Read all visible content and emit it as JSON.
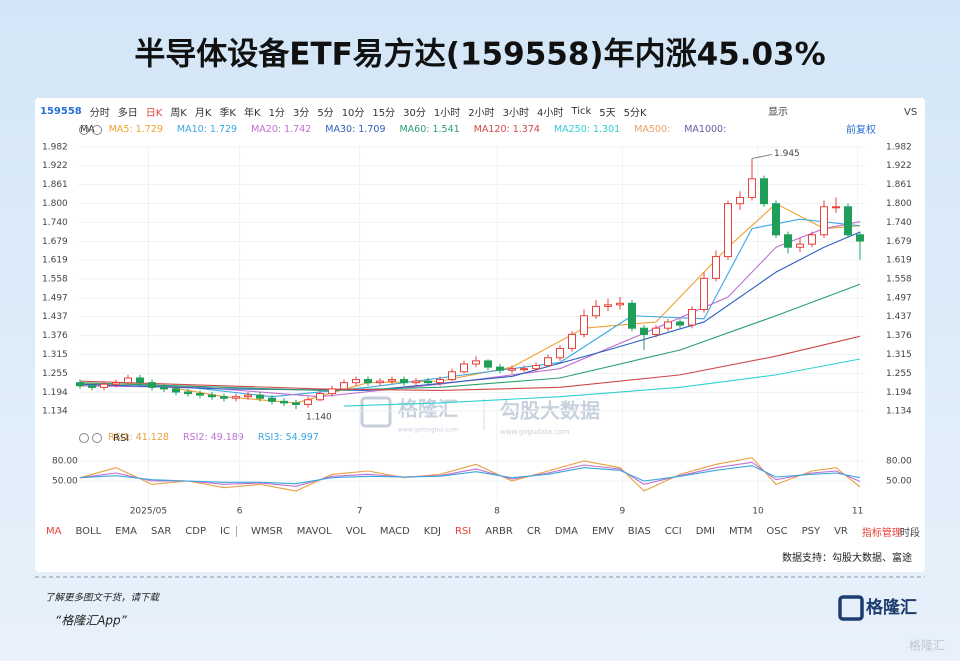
{
  "header": {
    "title": "半导体设备ETF易方达(159558)年内涨45.03%"
  },
  "toolbar": {
    "code": "159558",
    "items": [
      "分时",
      "多日",
      "日K",
      "周K",
      "月K",
      "季K",
      "年K",
      "1分",
      "3分",
      "5分",
      "10分",
      "15分",
      "30分",
      "1小时",
      "2小时",
      "3小时",
      "4小时",
      "Tick",
      "5天",
      "5分K"
    ],
    "active": "日K",
    "right": [
      "显示",
      "VS"
    ]
  },
  "chart_data": {
    "type": "candlestick",
    "legend_title": "MA",
    "adjust": "前复权",
    "up_color": "#e8413a",
    "down_color": "#1f9e5a",
    "ylim": [
      1.134,
      1.982
    ],
    "yticks": [
      1.982,
      1.922,
      1.861,
      {
        "value": 1.8,
        "label": "1.800"
      },
      {
        "value": 1.74,
        "label": "1.740"
      },
      1.679,
      1.619,
      1.558,
      1.497,
      1.437,
      1.376,
      1.315,
      1.255,
      1.194,
      1.134
    ],
    "xticks": [
      {
        "value": 5.7,
        "label": "2025/05"
      },
      {
        "value": 13.3,
        "label": "6"
      },
      {
        "value": 23.3,
        "label": "7"
      },
      {
        "value": 34.75,
        "label": "8"
      },
      {
        "value": 45.2,
        "label": "9"
      },
      {
        "value": 56.5,
        "label": "10"
      },
      {
        "value": 64.8,
        "label": "11"
      }
    ],
    "grid": true,
    "high_label": "1.945",
    "low_label": "1.140",
    "open": [
      1.225,
      1.215,
      1.21,
      1.22,
      1.225,
      1.24,
      1.225,
      1.21,
      1.205,
      1.195,
      1.19,
      1.185,
      1.18,
      1.175,
      1.18,
      1.185,
      1.175,
      1.165,
      1.16,
      1.155,
      1.17,
      1.19,
      1.205,
      1.225,
      1.235,
      1.225,
      1.23,
      1.235,
      1.225,
      1.23,
      1.225,
      1.235,
      1.26,
      1.285,
      1.295,
      1.275,
      1.265,
      1.27,
      1.27,
      1.28,
      1.305,
      1.335,
      1.38,
      1.44,
      1.47,
      1.475,
      1.48,
      1.4,
      1.38,
      1.4,
      1.42,
      1.41,
      1.46,
      1.56,
      1.63,
      1.8,
      1.82,
      1.88,
      1.8,
      1.7,
      1.66,
      1.67,
      1.7,
      1.79,
      1.79,
      1.7
    ],
    "close": [
      1.215,
      1.21,
      1.22,
      1.225,
      1.24,
      1.225,
      1.21,
      1.205,
      1.195,
      1.19,
      1.185,
      1.18,
      1.175,
      1.18,
      1.185,
      1.175,
      1.165,
      1.16,
      1.155,
      1.17,
      1.19,
      1.205,
      1.225,
      1.235,
      1.225,
      1.23,
      1.235,
      1.225,
      1.23,
      1.225,
      1.235,
      1.26,
      1.285,
      1.295,
      1.275,
      1.265,
      1.27,
      1.27,
      1.28,
      1.305,
      1.335,
      1.38,
      1.44,
      1.47,
      1.475,
      1.48,
      1.4,
      1.38,
      1.4,
      1.42,
      1.41,
      1.46,
      1.56,
      1.63,
      1.8,
      1.82,
      1.88,
      1.8,
      1.7,
      1.66,
      1.67,
      1.7,
      1.79,
      1.79,
      1.7,
      1.68
    ],
    "high": [
      1.235,
      1.225,
      1.23,
      1.235,
      1.25,
      1.25,
      1.235,
      1.22,
      1.215,
      1.205,
      1.2,
      1.195,
      1.19,
      1.19,
      1.195,
      1.195,
      1.185,
      1.175,
      1.17,
      1.18,
      1.2,
      1.215,
      1.235,
      1.245,
      1.245,
      1.24,
      1.245,
      1.245,
      1.24,
      1.24,
      1.245,
      1.27,
      1.295,
      1.31,
      1.3,
      1.285,
      1.28,
      1.28,
      1.29,
      1.315,
      1.345,
      1.39,
      1.46,
      1.49,
      1.495,
      1.5,
      1.49,
      1.41,
      1.41,
      1.43,
      1.43,
      1.47,
      1.58,
      1.65,
      1.81,
      1.84,
      1.945,
      1.89,
      1.81,
      1.71,
      1.69,
      1.71,
      1.81,
      1.82,
      1.8,
      1.71
    ],
    "low": [
      1.205,
      1.2,
      1.2,
      1.21,
      1.215,
      1.215,
      1.2,
      1.195,
      1.185,
      1.18,
      1.175,
      1.17,
      1.165,
      1.165,
      1.17,
      1.165,
      1.155,
      1.15,
      1.14,
      1.145,
      1.165,
      1.18,
      1.2,
      1.215,
      1.215,
      1.215,
      1.22,
      1.215,
      1.215,
      1.215,
      1.215,
      1.23,
      1.255,
      1.275,
      1.265,
      1.255,
      1.255,
      1.26,
      1.26,
      1.275,
      1.295,
      1.325,
      1.37,
      1.43,
      1.455,
      1.46,
      1.39,
      1.33,
      1.37,
      1.39,
      1.4,
      1.4,
      1.45,
      1.55,
      1.62,
      1.78,
      1.81,
      1.79,
      1.69,
      1.64,
      1.645,
      1.66,
      1.69,
      1.77,
      1.69,
      1.62
    ],
    "series": [
      {
        "name": "MA5: 1.729",
        "color": "#f0a030",
        "x": [
          0,
          6,
          12,
          18,
          24,
          30,
          36,
          42,
          48,
          54,
          58,
          62,
          65
        ],
        "values": [
          1.22,
          1.22,
          1.18,
          1.16,
          1.225,
          1.23,
          1.275,
          1.4,
          1.42,
          1.66,
          1.8,
          1.72,
          1.729
        ]
      },
      {
        "name": "MA10: 1.729",
        "color": "#3ba7e0",
        "x": [
          0,
          8,
          16,
          24,
          32,
          40,
          46,
          52,
          56,
          60,
          65
        ],
        "values": [
          1.215,
          1.215,
          1.18,
          1.21,
          1.25,
          1.29,
          1.44,
          1.43,
          1.72,
          1.75,
          1.729
        ]
      },
      {
        "name": "MA20: 1.742",
        "color": "#c070d0",
        "x": [
          0,
          10,
          20,
          30,
          40,
          48,
          54,
          58,
          62,
          65
        ],
        "values": [
          1.215,
          1.21,
          1.18,
          1.22,
          1.27,
          1.4,
          1.5,
          1.66,
          1.72,
          1.742
        ]
      },
      {
        "name": "MA30: 1.709",
        "color": "#3060c0",
        "x": [
          0,
          12,
          24,
          36,
          44,
          52,
          58,
          62,
          65
        ],
        "values": [
          1.22,
          1.205,
          1.2,
          1.245,
          1.33,
          1.42,
          1.58,
          1.66,
          1.709
        ]
      },
      {
        "name": "MA60: 1.541",
        "color": "#2aa070",
        "x": [
          0,
          20,
          30,
          40,
          50,
          58,
          65
        ],
        "values": [
          1.225,
          1.2,
          1.21,
          1.24,
          1.33,
          1.44,
          1.541
        ]
      },
      {
        "name": "MA120: 1.374",
        "color": "#d04848",
        "x": [
          0,
          20,
          30,
          40,
          50,
          58,
          65
        ],
        "values": [
          1.23,
          1.205,
          1.2,
          1.21,
          1.25,
          1.31,
          1.374
        ]
      },
      {
        "name": "MA250: 1.301",
        "color": "#30d0d0",
        "x": [
          22,
          30,
          40,
          50,
          58,
          65
        ],
        "values": [
          1.15,
          1.16,
          1.18,
          1.21,
          1.25,
          1.301
        ]
      },
      {
        "name": "MA500:",
        "color": "#e8a060",
        "x": [],
        "values": []
      },
      {
        "name": "MA1000:",
        "color": "#6060a0",
        "x": [],
        "values": []
      }
    ]
  },
  "indicator": {
    "name": "RSI",
    "ylim": [
      20,
      95
    ],
    "yticks": [
      {
        "value": 80,
        "label": "80.00"
      },
      {
        "value": 50,
        "label": "50.00"
      }
    ],
    "series": [
      {
        "name": "RSI1: 41.128",
        "color": "#e8a040",
        "x": [
          0,
          3,
          6,
          9,
          12,
          15,
          18,
          21,
          24,
          27,
          30,
          33,
          36,
          39,
          42,
          45,
          47,
          50,
          53,
          56,
          58,
          61,
          63,
          65
        ],
        "values": [
          55,
          70,
          45,
          50,
          40,
          45,
          35,
          60,
          65,
          55,
          60,
          75,
          50,
          65,
          80,
          70,
          35,
          60,
          75,
          85,
          45,
          65,
          70,
          41.1
        ]
      },
      {
        "name": "RSI2: 49.189",
        "color": "#c070d0",
        "x": [
          0,
          3,
          6,
          9,
          12,
          15,
          18,
          21,
          24,
          27,
          30,
          33,
          36,
          39,
          42,
          45,
          47,
          50,
          53,
          56,
          58,
          61,
          63,
          65
        ],
        "values": [
          55,
          62,
          50,
          50,
          45,
          47,
          42,
          57,
          60,
          56,
          58,
          68,
          53,
          62,
          74,
          68,
          45,
          58,
          70,
          78,
          52,
          62,
          65,
          49.2
        ]
      },
      {
        "name": "RSI3: 54.997",
        "color": "#3ba7e0",
        "x": [
          0,
          3,
          6,
          9,
          12,
          15,
          18,
          21,
          24,
          27,
          30,
          33,
          36,
          39,
          42,
          45,
          47,
          50,
          53,
          56,
          58,
          61,
          63,
          65
        ],
        "values": [
          55,
          58,
          52,
          50,
          48,
          48,
          46,
          55,
          57,
          56,
          57,
          64,
          55,
          60,
          70,
          66,
          50,
          57,
          66,
          73,
          56,
          60,
          62,
          55.0
        ]
      }
    ]
  },
  "tabs": {
    "items": [
      "MA",
      "BOLL",
      "EMA",
      "SAR",
      "CDP",
      "IC",
      "WMSR",
      "MAVOL",
      "VOL",
      "MACD",
      "KDJ",
      "RSI",
      "ARBR",
      "CR",
      "DMA",
      "EMV",
      "BIAS",
      "CCI",
      "DMI",
      "MTM",
      "OSC",
      "PSY",
      "VR",
      "指标管理"
    ],
    "highlighted": [
      "MA",
      "RSI",
      "指标管理"
    ],
    "right": "时段"
  },
  "source": "数据支持：勾股大数据、富途",
  "watermarks": {
    "left": "格隆汇",
    "left_sub": "www.gelonghui.com",
    "right": "勾股大数据",
    "right_sub": "www.gogudata.com"
  },
  "footer": {
    "line1": "了解更多图文干货，请下载",
    "line2": "“格隆汇App”",
    "logo": "格隆汇",
    "corner": "格隆汇"
  }
}
